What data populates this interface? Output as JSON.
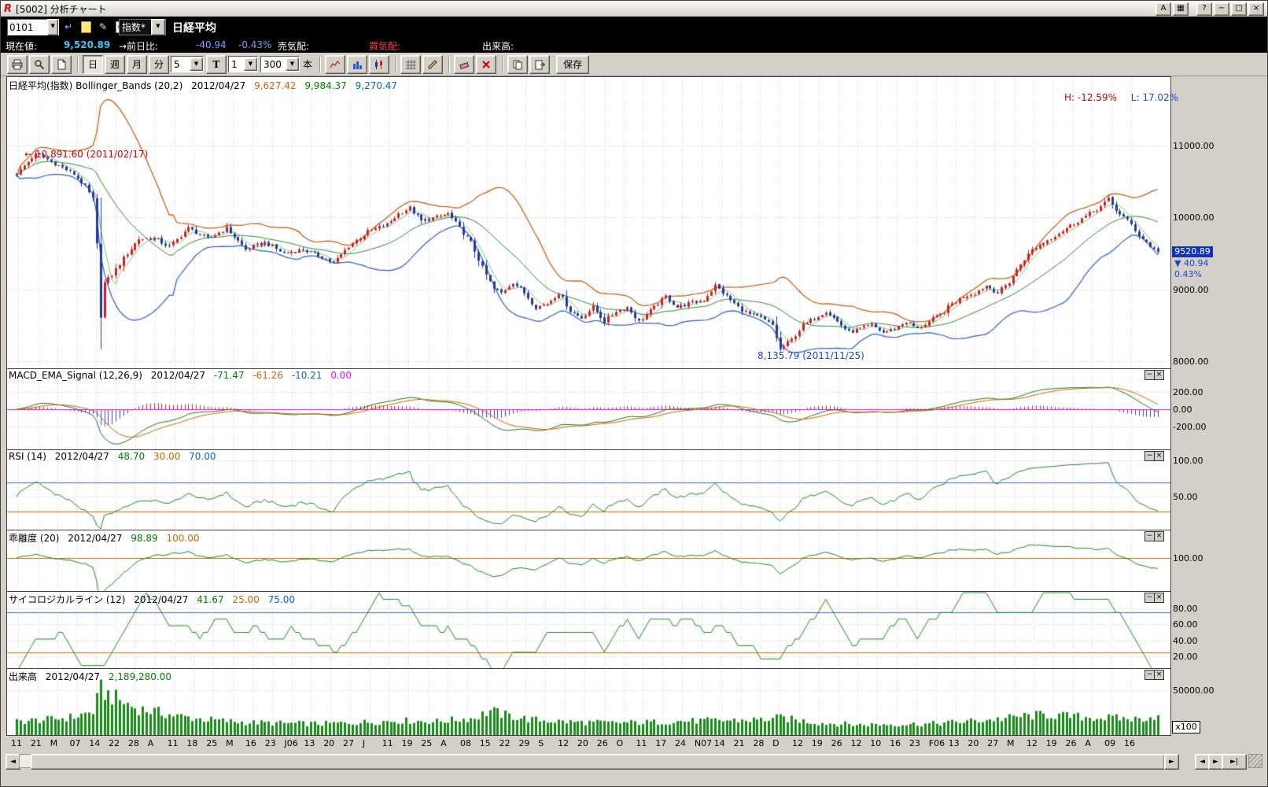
{
  "window": {
    "title": "[5002] 分析チャート",
    "logo": "R",
    "buttons": {
      "a": "A",
      "layout": "▦",
      "help": "?",
      "minimize": "−",
      "maximize": "□",
      "close": "×"
    }
  },
  "symbol_bar": {
    "code_value": "0101",
    "index_selector": "指数*",
    "symbol_name": "日経平均"
  },
  "quote_bar": {
    "current_label": "現在値:",
    "current_value": "9,520.89",
    "change_label": "→前日比:",
    "change_value": "-40.94",
    "change_pct": "-0.43%",
    "ask_label": "売気配:",
    "bid_label": "買気配:",
    "volume_label": "出来高:"
  },
  "toolbar": {
    "period_day": "日",
    "period_week": "週",
    "period_month": "月",
    "period_minute": "分",
    "minute_value": "5",
    "tick_label": "T",
    "tick_value": "1",
    "bars_value": "300",
    "bars_unit": "本",
    "save_label": "保存"
  },
  "panes": {
    "main": {
      "title": "日経平均(指数) Bollinger_Bands (20,2)",
      "date": "2012/04/27",
      "v1": "9,627.42",
      "v2": "9,984.37",
      "v3": "9,270.47",
      "high_label": "H: -12.59%",
      "low_label": "L: 17.02%",
      "peak_annotation": "← 10,891.60 (2011/02/17)",
      "trough_annotation": "8,135.79 (2011/11/25)",
      "last_price": "9520.89",
      "last_change": "▼ 40.94",
      "last_pct": "0.43%"
    },
    "macd": {
      "title": "MACD_EMA_Signal (12,26,9)",
      "date": "2012/04/27",
      "v1": "-71.47",
      "v2": "-61.26",
      "v3": "-10.21",
      "v4": "0.00"
    },
    "rsi": {
      "title": "RSI (14)",
      "date": "2012/04/27",
      "v1": "48.70",
      "v2": "30.00",
      "v3": "70.00"
    },
    "kairi": {
      "title": "乖離度 (20)",
      "date": "2012/04/27",
      "v1": "98.89",
      "v2": "100.00"
    },
    "psych": {
      "title": "サイコロジカルライン (12)",
      "date": "2012/04/27",
      "v1": "41.67",
      "v2": "25.00",
      "v3": "75.00"
    },
    "volume": {
      "title": "出来高",
      "date": "2012/04/27",
      "v1": "2,189,280.00",
      "scale_badge": "x100"
    }
  },
  "axis_labels": {
    "main": [
      {
        "label": "11000.00",
        "value": 11000
      },
      {
        "label": "10000.00",
        "value": 10000
      },
      {
        "label": "9000.00",
        "value": 9000
      },
      {
        "label": "8000.00",
        "value": 8000
      }
    ],
    "macd": [
      {
        "label": "200.00",
        "value": 200
      },
      {
        "label": "0.00",
        "value": 0
      },
      {
        "label": "-200.00",
        "value": -200
      }
    ],
    "rsi": [
      {
        "label": "100.00",
        "value": 100
      },
      {
        "label": "50.00",
        "value": 50
      }
    ],
    "kairi": [
      {
        "label": "100.00",
        "value": 100
      }
    ],
    "psych": [
      {
        "label": "80.00",
        "value": 80
      },
      {
        "label": "60.00",
        "value": 60
      },
      {
        "label": "40.00",
        "value": 40
      },
      {
        "label": "20.00",
        "value": 20
      }
    ],
    "volume": [
      {
        "label": "50000.00",
        "value": 50000
      }
    ]
  },
  "icons": {
    "pane_min": "−",
    "pane_close": "×",
    "arrow_left": "◄",
    "arrow_right": "►",
    "arrow_end": "►|",
    "combo_arrow": "▼",
    "back": "↵",
    "edit": "✎"
  },
  "chart_data": {
    "type": "candlestick",
    "title": "日経平均(指数) Bollinger_Bands (20,2)",
    "date": "2012/04/27",
    "bars": 300,
    "price_range": [
      7900,
      11950
    ],
    "price_waypoints": {
      "x": [
        0,
        5,
        10,
        15,
        18,
        20,
        21,
        22,
        23,
        25,
        28,
        32,
        36,
        40,
        45,
        50,
        55,
        60,
        65,
        70,
        75,
        80,
        83,
        87,
        92,
        97,
        100,
        103,
        106,
        110,
        113,
        116,
        119,
        122,
        125,
        127,
        130,
        133,
        136,
        139,
        142,
        145,
        148,
        151,
        154,
        157,
        160,
        163,
        166,
        170,
        173,
        176,
        180,
        183,
        186,
        189,
        192,
        195,
        198,
        200,
        203,
        206,
        209,
        212,
        215,
        218,
        221,
        224,
        227,
        230,
        233,
        236,
        239,
        242,
        245,
        248,
        251,
        254,
        257,
        260,
        263,
        266,
        269,
        272,
        275,
        278,
        281,
        284,
        286,
        288,
        290,
        292,
        294,
        296,
        298,
        299
      ],
      "v": [
        10600,
        10891,
        10750,
        10600,
        10430,
        10250,
        9620,
        8605,
        9090,
        9200,
        9430,
        9700,
        9710,
        9590,
        9850,
        9700,
        9850,
        9550,
        9650,
        9500,
        9550,
        9450,
        9360,
        9600,
        9800,
        9900,
        10050,
        10130,
        9950,
        10000,
        10050,
        9850,
        9650,
        9300,
        9000,
        8950,
        9100,
        8950,
        8750,
        8800,
        8950,
        8700,
        8600,
        8750,
        8550,
        8700,
        8750,
        8550,
        8700,
        8900,
        8750,
        8800,
        8850,
        9050,
        8900,
        8750,
        8650,
        8600,
        8500,
        8160,
        8300,
        8500,
        8600,
        8700,
        8550,
        8400,
        8450,
        8500,
        8400,
        8450,
        8550,
        8450,
        8550,
        8650,
        8800,
        8900,
        8950,
        9050,
        8950,
        9100,
        9350,
        9550,
        9650,
        9750,
        9850,
        9950,
        10050,
        10150,
        10250,
        10100,
        10000,
        9900,
        9750,
        9650,
        9550,
        9520.89
      ]
    },
    "volume_range": [
      0,
      74000
    ],
    "volume_waypoints": {
      "x": [
        0,
        8,
        15,
        20,
        22,
        24,
        27,
        31,
        36,
        42,
        50,
        60,
        70,
        80,
        90,
        100,
        110,
        120,
        124,
        128,
        135,
        145,
        155,
        165,
        175,
        185,
        195,
        200,
        210,
        220,
        230,
        240,
        250,
        258,
        264,
        270,
        276,
        282,
        288,
        294,
        299
      ],
      "v": [
        15000,
        17000,
        20000,
        26000,
        50000,
        45000,
        38000,
        30000,
        26000,
        21000,
        17000,
        14000,
        13000,
        12500,
        14000,
        16000,
        15000,
        19000,
        27000,
        22000,
        17000,
        14500,
        13500,
        14000,
        15500,
        16000,
        17000,
        19000,
        13500,
        11500,
        12000,
        12500,
        15500,
        18000,
        21000,
        22500,
        20500,
        19500,
        18500,
        17500,
        21892.8
      ]
    },
    "indicators": {
      "bollinger": {
        "period": 20,
        "mult": 2
      },
      "macd": {
        "fast": 12,
        "slow": 26,
        "signal": 9,
        "range": [
          -460,
          470
        ]
      },
      "rsi": {
        "period": 14,
        "range": [
          5,
          115
        ],
        "upper": 70,
        "lower": 30
      },
      "kairi": {
        "period": 20,
        "range": [
          87,
          111
        ],
        "base": 100
      },
      "psych": {
        "period": 12,
        "range": [
          5,
          102
        ],
        "upper": 75,
        "lower": 25
      }
    },
    "x_ticks": [
      "11",
      "21",
      "M",
      "07",
      "14",
      "22",
      "28",
      "A",
      "11",
      "18",
      "25",
      "M",
      "16",
      "23",
      "J06",
      "13",
      "20",
      "27",
      "J",
      "11",
      "19",
      "25",
      "A",
      "08",
      "15",
      "22",
      "29",
      "S",
      "12",
      "20",
      "26",
      "O",
      "11",
      "17",
      "24",
      "N07",
      "14",
      "21",
      "28",
      "D",
      "12",
      "19",
      "26",
      "12",
      "10",
      "16",
      "23",
      "F06",
      "13",
      "20",
      "27",
      "M",
      "12",
      "19",
      "26",
      "A",
      "09",
      "16"
    ],
    "colors": {
      "up": "#cc2222",
      "down": "#223a99",
      "boll_upper": "#cc5500",
      "boll_mid": "#2e8b2e",
      "boll_fast": "#7ac77a",
      "boll_lower": "#2a5bd7",
      "macd": "#1a7a1a",
      "macd_signal": "#cc6600",
      "macd_hist_pos": "#cc2222",
      "macd_hist_neg": "#3344bb",
      "zero": "#ff00ff",
      "rsi": "#1a8a1a",
      "line_upper": "#3a6bc9",
      "line_lower": "#cc6600",
      "volume": "#1a8a1a",
      "grid": "#c6cbd6"
    }
  }
}
